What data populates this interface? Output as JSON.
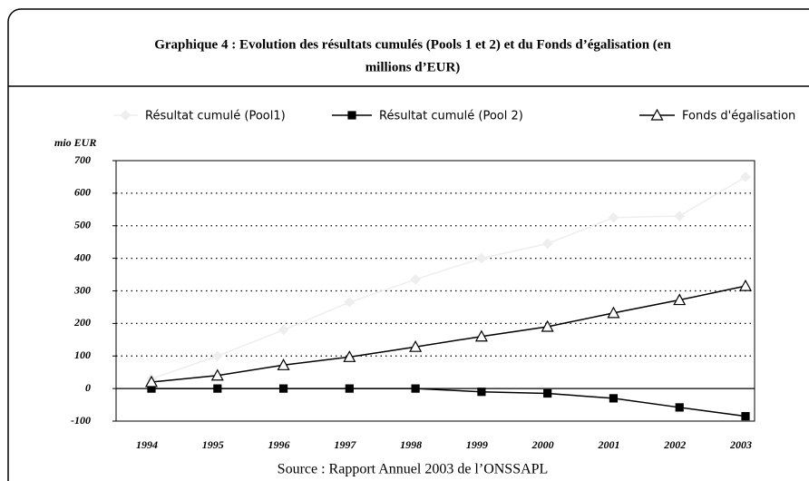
{
  "chart_data": {
    "type": "line",
    "title": [
      "Graphique 4 : Evolution des résultats cumulés (Pools 1 et 2)  et du Fonds d’égalisation (en",
      "millions d’EUR)"
    ],
    "y_label": "mio EUR",
    "source": "Source : Rapport Annuel 2003 de l’ONSSAPL",
    "categories": [
      "1994",
      "1995",
      "1996",
      "1997",
      "1998",
      "1999",
      "2000",
      "2001",
      "2002",
      "2003"
    ],
    "series": [
      {
        "name": "Résultat cumulé (Pool1)",
        "color": "#eeeeee",
        "marker": "diamond",
        "values": [
          30,
          100,
          180,
          265,
          335,
          400,
          445,
          525,
          530,
          650
        ]
      },
      {
        "name": "Résultat cumulé (Pool 2)",
        "color": "#000000",
        "marker": "square",
        "values": [
          0,
          0,
          0,
          0,
          0,
          -10,
          -15,
          -30,
          -58,
          -85
        ]
      },
      {
        "name": "Fonds d'égalisation",
        "color": "#000000",
        "marker": "triangle",
        "values": [
          20,
          40,
          72,
          97,
          128,
          160,
          190,
          232,
          272,
          315
        ]
      }
    ],
    "ylim": [
      -100,
      700
    ],
    "yticks": [
      -100,
      0,
      100,
      200,
      300,
      400,
      500,
      600,
      700
    ],
    "grid": true
  }
}
